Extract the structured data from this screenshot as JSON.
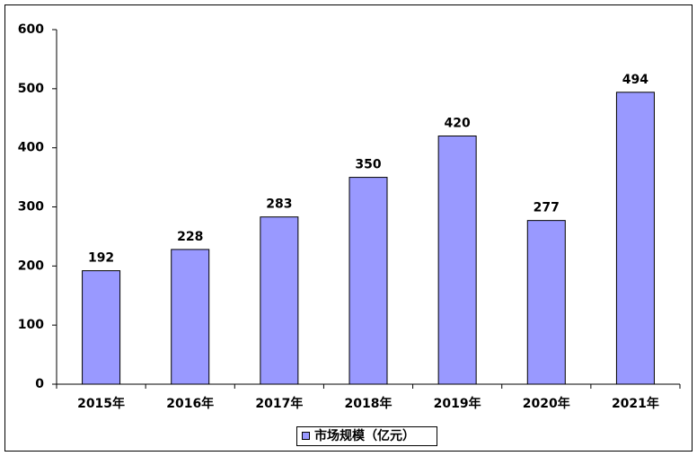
{
  "chart_data": {
    "type": "bar",
    "categories": [
      "2015年",
      "2016年",
      "2017年",
      "2018年",
      "2019年",
      "2020年",
      "2021年"
    ],
    "series": [
      {
        "name": "市场规模（亿元）",
        "color": "#9999ff",
        "values": [
          192,
          228,
          283,
          350,
          420,
          277,
          494
        ]
      }
    ],
    "ylim": [
      0,
      600
    ],
    "yticks": [
      0,
      100,
      200,
      300,
      400,
      500,
      600
    ],
    "grid": false,
    "legend": "bottom"
  }
}
